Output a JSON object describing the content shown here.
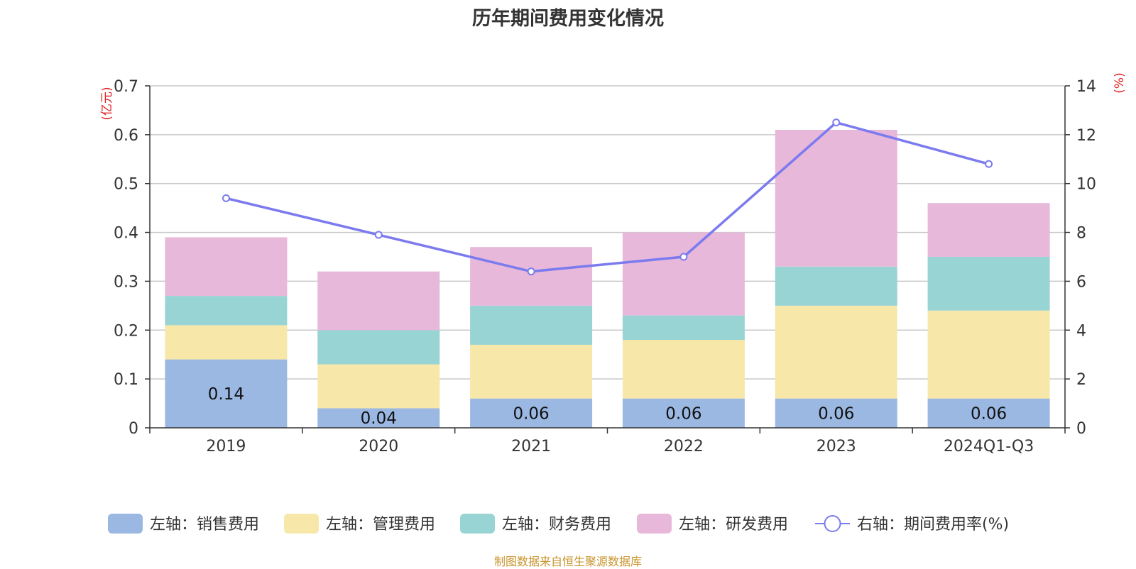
{
  "chart_data": {
    "type": "bar",
    "title": "历年期间费用变化情况",
    "categories": [
      "2019",
      "2020",
      "2021",
      "2022",
      "2023",
      "2024Q1-Q3"
    ],
    "left_axis": {
      "unit": "(亿元)",
      "ylim": [
        0,
        0.7
      ],
      "ticks": [
        "0",
        "0.1",
        "0.2",
        "0.3",
        "0.4",
        "0.5",
        "0.6",
        "0.7"
      ]
    },
    "right_axis": {
      "unit": "(%)",
      "ylim": [
        0,
        14
      ],
      "ticks": [
        "0",
        "2",
        "4",
        "6",
        "8",
        "10",
        "12",
        "14"
      ]
    },
    "stacked": true,
    "series": [
      {
        "name": "左轴：销售费用",
        "color": "#9bb8e3",
        "values": [
          0.14,
          0.04,
          0.06,
          0.06,
          0.06,
          0.06
        ],
        "labels": [
          "0.14",
          "0.04",
          "0.06",
          "0.06",
          "0.06",
          "0.06"
        ]
      },
      {
        "name": "左轴：管理费用",
        "color": "#f7e7a8",
        "values": [
          0.07,
          0.09,
          0.11,
          0.12,
          0.19,
          0.18
        ]
      },
      {
        "name": "左轴：财务费用",
        "color": "#98d4d4",
        "values": [
          0.06,
          0.07,
          0.08,
          0.05,
          0.08,
          0.11
        ]
      },
      {
        "name": "左轴：研发费用",
        "color": "#e7b8da",
        "values": [
          0.12,
          0.12,
          0.12,
          0.17,
          0.28,
          0.11
        ]
      }
    ],
    "line_series": {
      "name": "右轴：期间费用率(%)",
      "color": "#7b7bef",
      "values": [
        9.4,
        7.9,
        6.4,
        7.0,
        12.5,
        10.8
      ]
    },
    "grid": true,
    "legend_position": "bottom"
  },
  "source": "制图数据来自恒生聚源数据库"
}
